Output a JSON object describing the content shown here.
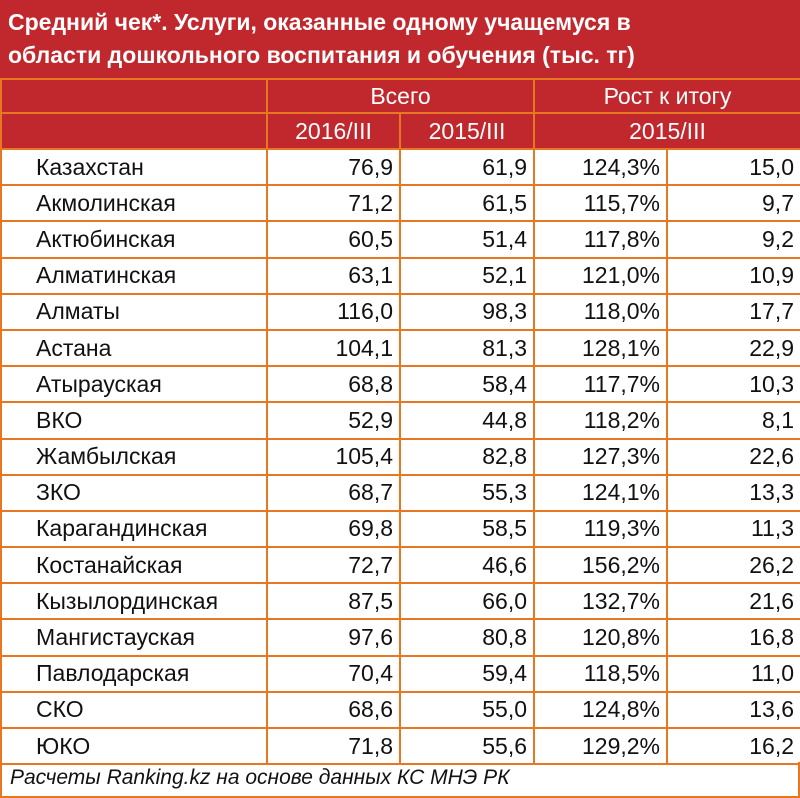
{
  "title": {
    "line1": "Средний чек*.  Услуги, оказанные одному учащемуся в",
    "line2": "области дошкольного воспитания и обучения (тыс. тг)"
  },
  "header": {
    "total_label": "Всего",
    "growth_label": "Рост к итогу",
    "col_2016": "2016/III",
    "col_2015": "2015/III",
    "growth_period": "2015/III"
  },
  "rows": [
    {
      "region": "Казахстан",
      "v2016": "76,9",
      "v2015": "61,9",
      "pct": "124,3%",
      "diff": "15,0"
    },
    {
      "region": "Акмолинская",
      "v2016": "71,2",
      "v2015": "61,5",
      "pct": "115,7%",
      "diff": "9,7"
    },
    {
      "region": "Актюбинская",
      "v2016": "60,5",
      "v2015": "51,4",
      "pct": "117,8%",
      "diff": "9,2"
    },
    {
      "region": "Алматинская",
      "v2016": "63,1",
      "v2015": "52,1",
      "pct": "121,0%",
      "diff": "10,9"
    },
    {
      "region": "Алматы",
      "v2016": "116,0",
      "v2015": "98,3",
      "pct": "118,0%",
      "diff": "17,7"
    },
    {
      "region": "Астана",
      "v2016": "104,1",
      "v2015": "81,3",
      "pct": "128,1%",
      "diff": "22,9"
    },
    {
      "region": "Атырауская",
      "v2016": "68,8",
      "v2015": "58,4",
      "pct": "117,7%",
      "diff": "10,3"
    },
    {
      "region": "ВКО",
      "v2016": "52,9",
      "v2015": "44,8",
      "pct": "118,2%",
      "diff": "8,1"
    },
    {
      "region": "Жамбылская",
      "v2016": "105,4",
      "v2015": "82,8",
      "pct": "127,3%",
      "diff": "22,6"
    },
    {
      "region": "ЗКО",
      "v2016": "68,7",
      "v2015": "55,3",
      "pct": "124,1%",
      "diff": "13,3"
    },
    {
      "region": "Карагандинская",
      "v2016": "69,8",
      "v2015": "58,5",
      "pct": "119,3%",
      "diff": "11,3"
    },
    {
      "region": "Костанайская",
      "v2016": "72,7",
      "v2015": "46,6",
      "pct": "156,2%",
      "diff": "26,2"
    },
    {
      "region": "Кызылординская",
      "v2016": "87,5",
      "v2015": "66,0",
      "pct": "132,7%",
      "diff": "21,6"
    },
    {
      "region": "Мангистауская",
      "v2016": "97,6",
      "v2015": "80,8",
      "pct": "120,8%",
      "diff": "16,8"
    },
    {
      "region": "Павлодарская",
      "v2016": "70,4",
      "v2015": "59,4",
      "pct": "118,5%",
      "diff": "11,0"
    },
    {
      "region": "СКО",
      "v2016": "68,6",
      "v2015": "55,0",
      "pct": "124,8%",
      "diff": "13,6"
    },
    {
      "region": "ЮКО",
      "v2016": "71,8",
      "v2015": "55,6",
      "pct": "129,2%",
      "diff": "16,2"
    }
  ],
  "footer": "Расчеты Ranking.kz на основе данных КС МНЭ РК",
  "colors": {
    "header_bg": "#c0282d",
    "border": "#e87722",
    "header_text": "#ffffff"
  }
}
